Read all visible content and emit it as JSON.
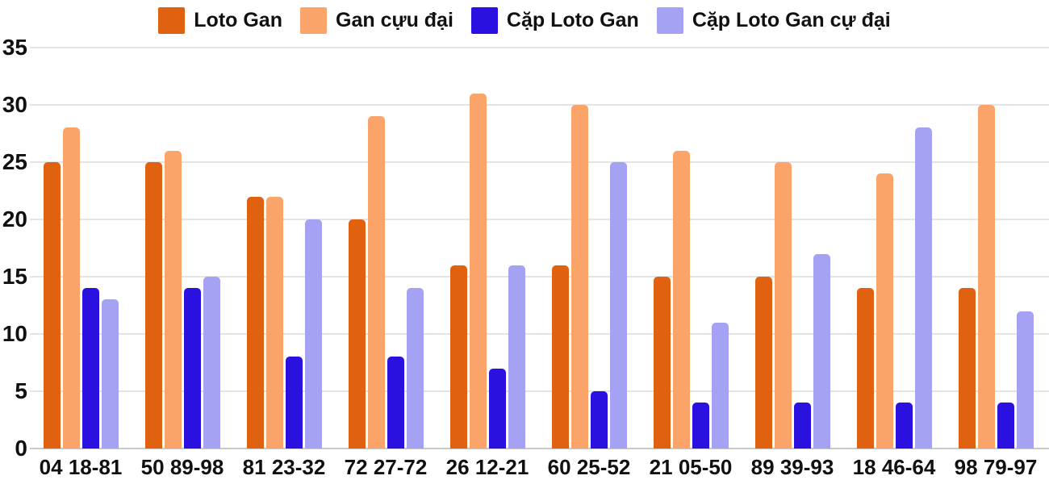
{
  "chart_data": {
    "type": "bar",
    "title": "",
    "xlabel": "",
    "ylabel": "",
    "categories": [
      "04 18-81",
      "50 89-98",
      "81 23-32",
      "72 27-72",
      "26 12-21",
      "60 25-52",
      "21 05-50",
      "89 39-93",
      "18 46-64",
      "98 79-97"
    ],
    "series": [
      {
        "name": "Loto Gan",
        "color": "#e0610f",
        "values": [
          25,
          25,
          22,
          20,
          16,
          16,
          15,
          15,
          14,
          14
        ]
      },
      {
        "name": "Gan cựu đại",
        "color": "#fba469",
        "values": [
          28,
          26,
          22,
          29,
          31,
          30,
          26,
          25,
          24,
          30
        ]
      },
      {
        "name": "Cặp Loto Gan",
        "color": "#2a11e0",
        "values": [
          14,
          14,
          8,
          8,
          7,
          5,
          4,
          4,
          4,
          4
        ]
      },
      {
        "name": "Cặp Loto Gan cự đại",
        "color": "#a5a1f3",
        "values": [
          13,
          15,
          20,
          14,
          16,
          25,
          11,
          17,
          28,
          12
        ]
      }
    ],
    "y_ticks": [
      0,
      5,
      10,
      15,
      20,
      25,
      30,
      35
    ],
    "ylim": [
      0,
      35
    ],
    "grid": true,
    "legend_position": "top",
    "grid_color": "#e4e4e4",
    "baseline_color": "#c9c9c9",
    "label_color": "#111111"
  }
}
